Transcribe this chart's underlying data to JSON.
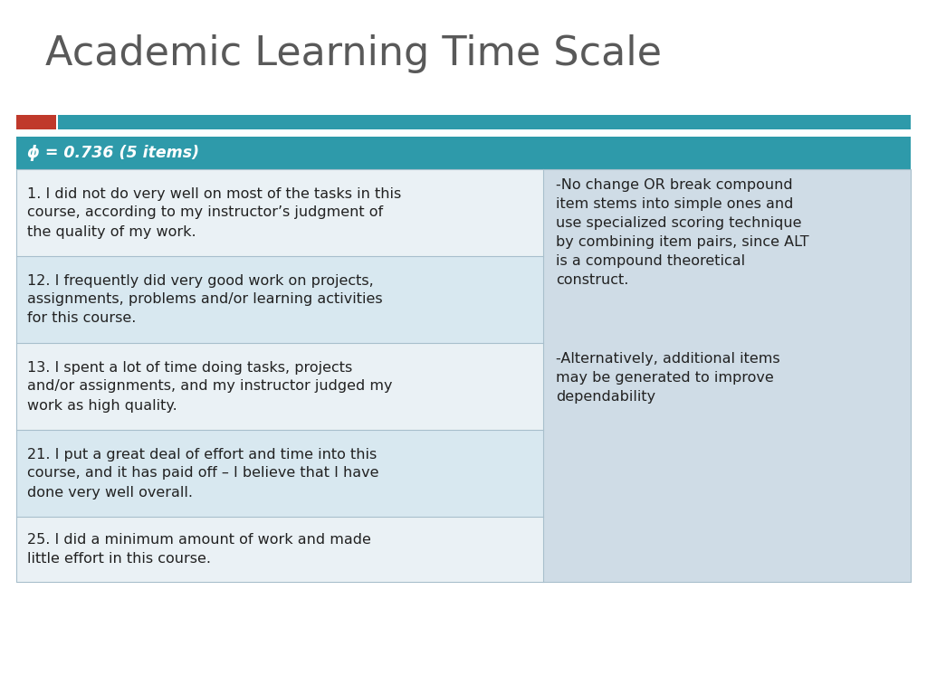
{
  "title": "Academic Learning Time Scale",
  "title_color": "#595959",
  "title_fontsize": 32,
  "bg_color": "#ffffff",
  "accent_red": "#c0392b",
  "accent_teal": "#2e9aaa",
  "header_bg": "#2e9aaa",
  "header_text": "ϕ = 0.736 (5 items)",
  "header_text_color": "#ffffff",
  "right_col_bg": "#cfdce6",
  "divider_color": "#a8bfcc",
  "left_rows": [
    "1. I did not do very well on most of the tasks in this\ncourse, according to my instructor’s judgment of\nthe quality of my work.",
    "12. I frequently did very good work on projects,\nassignments, problems and/or learning activities\nfor this course.",
    "13. I spent a lot of time doing tasks, projects\nand/or assignments, and my instructor judged my\nwork as high quality.",
    "21. I put a great deal of effort and time into this\ncourse, and it has paid off – I believe that I have\ndone very well overall.",
    "25. I did a minimum amount of work and made\nlittle effort in this course."
  ],
  "right_text_1": "-No change OR break compound\nitem stems into simple ones and\nuse specialized scoring technique\nby combining item pairs, since ALT\nis a compound theoretical\nconstruct.",
  "right_text_2": "-Alternatively, additional items\nmay be generated to improve\ndependability",
  "text_color": "#222222",
  "font_size": 11.5,
  "stripe_colors": [
    "#eaf1f5",
    "#d8e8f0",
    "#eaf1f5",
    "#d8e8f0",
    "#eaf1f5"
  ]
}
